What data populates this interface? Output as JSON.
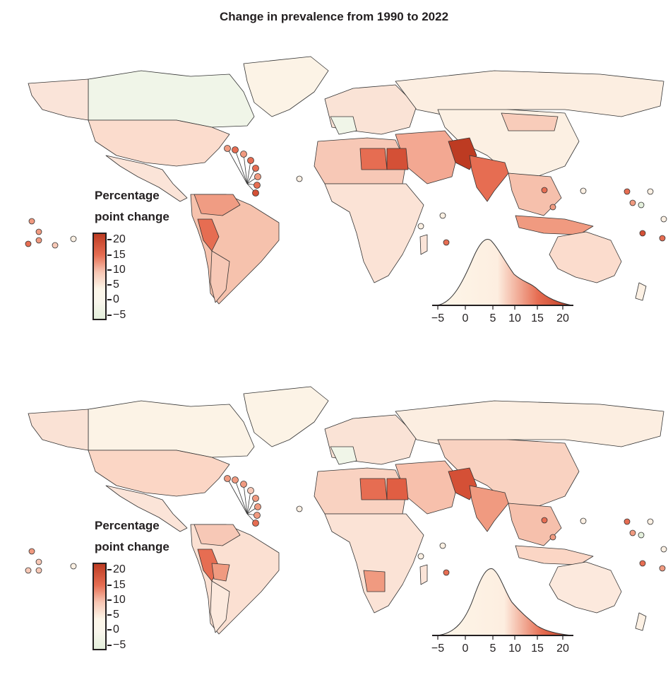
{
  "title": "Change in prevalence from 1990 to 2022",
  "legend": {
    "title_line1": "Percentage",
    "title_line2": "point change",
    "ticks": [
      "20",
      "15",
      "10",
      "5",
      "0",
      "−5"
    ],
    "colors": {
      "low": "#e4f0dc",
      "mid": "#fdf6e9",
      "high": "#bd3b22"
    }
  },
  "density_axis": {
    "ticks": [
      "−5",
      "0",
      "5",
      "10",
      "15",
      "20"
    ]
  },
  "chart_data": [
    {
      "type": "choropleth",
      "title": "Change in prevalence from 1990 to 2022",
      "scale_range": [
        -5,
        20
      ],
      "density_axis_range": [
        -5,
        20
      ],
      "density_peak_value": 4
    },
    {
      "type": "choropleth",
      "title": "",
      "scale_range": [
        -5,
        20
      ],
      "density_axis_range": [
        -5,
        20
      ],
      "density_peak_value": 6
    }
  ]
}
